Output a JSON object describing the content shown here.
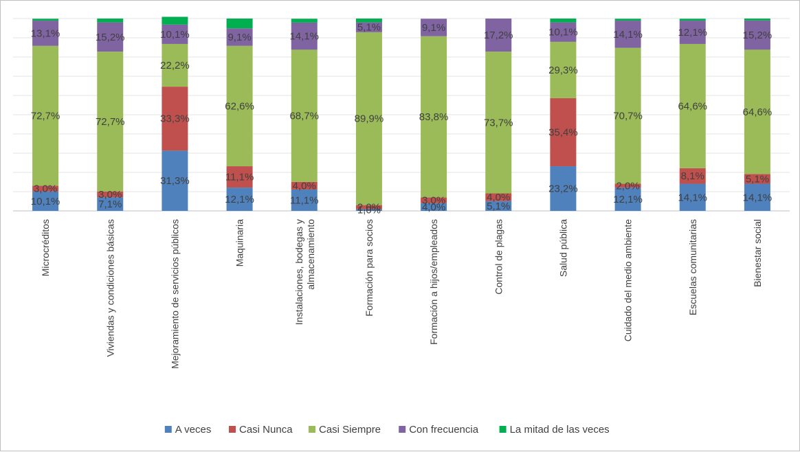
{
  "chart_data": {
    "type": "bar",
    "stacked": true,
    "percent_stacked": true,
    "title": "",
    "xlabel": "",
    "ylabel": "",
    "ylim": [
      0,
      100
    ],
    "grid": true,
    "legend_position": "bottom",
    "categories": [
      "Microcréditos",
      "Viviendas y condiciones básicas",
      "Mejoramiento de servicios públicos",
      "Maquinaria",
      "Instalaciones, bodegas y almacenamiento",
      "Formación para socios",
      "Formación a hijos/empleados",
      "Control de plagas",
      "Salud pública",
      "Cuidado del medio ambiente",
      "Escuelas comunitarias",
      "Bienestar social"
    ],
    "series": [
      {
        "name": "A veces",
        "color": "#4f81bd",
        "values": [
          10.1,
          7.1,
          31.3,
          12.1,
          11.1,
          1.0,
          4.0,
          5.1,
          23.2,
          12.1,
          14.1,
          14.1
        ],
        "labels": [
          "10,1%",
          "7,1%",
          "31,3%",
          "12,1%",
          "11,1%",
          "1,0%",
          "4,0%",
          "5,1%",
          "23,2%",
          "12,1%",
          "14,1%",
          "14,1%"
        ]
      },
      {
        "name": "Casi Nunca",
        "color": "#c0504d",
        "values": [
          3.0,
          3.0,
          33.3,
          11.1,
          4.0,
          2.0,
          3.0,
          4.0,
          35.4,
          2.0,
          8.1,
          5.1
        ],
        "labels": [
          "3,0%",
          "3,0%",
          "33,3%",
          "11,1%",
          "4,0%",
          "2,0%",
          "3,0%",
          "4,0%",
          "35,4%",
          "2,0%",
          "8,1%",
          "5,1%"
        ]
      },
      {
        "name": "Casi Siempre",
        "color": "#9bbb59",
        "values": [
          72.7,
          72.7,
          22.2,
          62.6,
          68.7,
          89.9,
          83.8,
          73.7,
          29.3,
          70.7,
          64.6,
          64.6
        ],
        "labels": [
          "72,7%",
          "72,7%",
          "22,2%",
          "62,6%",
          "68,7%",
          "89,9%",
          "83,8%",
          "73,7%",
          "29,3%",
          "70,7%",
          "64,6%",
          "64,6%"
        ]
      },
      {
        "name": "Con frecuencia",
        "color": "#8064a2",
        "values": [
          13.1,
          15.2,
          10.1,
          9.1,
          14.1,
          5.1,
          9.1,
          17.2,
          10.1,
          14.1,
          12.1,
          15.2
        ],
        "labels": [
          "13,1%",
          "15,2%",
          "10,1%",
          "9,1%",
          "14,1%",
          "5,1%",
          "9,1%",
          "17,2%",
          "10,1%",
          "14,1%",
          "12,1%",
          "15,2%"
        ]
      },
      {
        "name": "La mitad de las veces",
        "color": "#00b050",
        "values": [
          1.0,
          2.0,
          4.0,
          5.1,
          2.0,
          2.0,
          0.0,
          0.0,
          2.0,
          1.0,
          1.0,
          1.0
        ],
        "labels": [
          "",
          "",
          "",
          "",
          "",
          "",
          "",
          "",
          "",
          "",
          "",
          ""
        ]
      }
    ]
  }
}
